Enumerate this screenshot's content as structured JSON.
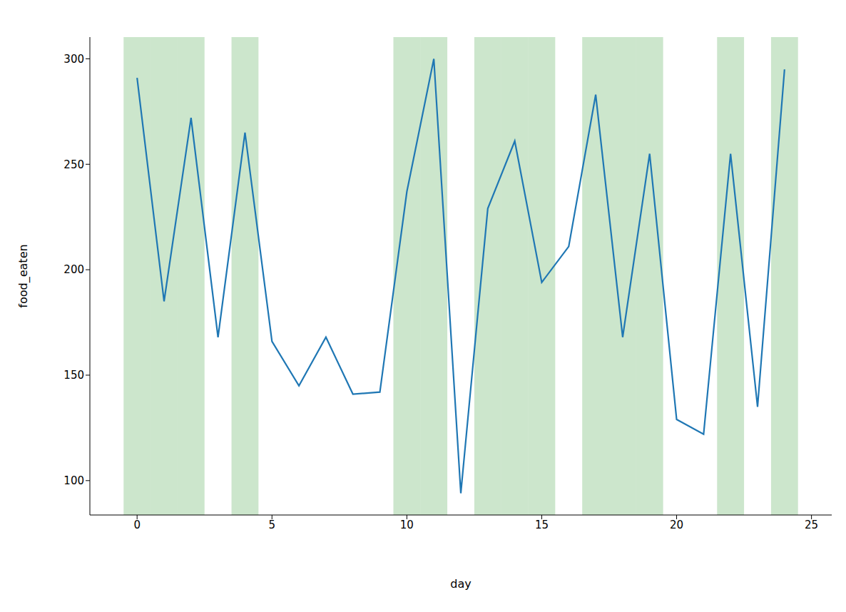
{
  "chart_data": {
    "type": "line",
    "x": [
      0,
      1,
      2,
      3,
      4,
      5,
      6,
      7,
      8,
      9,
      10,
      11,
      12,
      13,
      14,
      15,
      16,
      17,
      18,
      19,
      20,
      21,
      22,
      23,
      24
    ],
    "values": [
      291,
      185,
      272,
      168,
      265,
      166,
      145,
      168,
      141,
      142,
      237,
      300,
      94,
      229,
      261,
      194,
      211,
      283,
      168,
      255,
      129,
      122,
      255,
      135,
      295
    ],
    "color": "#1f77b4",
    "x_label": "day",
    "y_label": "food_eaten",
    "xlim": [
      -1.75,
      25.75
    ],
    "ylim": [
      83.7,
      310.3
    ],
    "xticks": [
      0,
      5,
      10,
      15,
      20,
      25
    ],
    "yticks": [
      100,
      150,
      200,
      250,
      300
    ],
    "highlighted_days": [
      0,
      1,
      2,
      4,
      10,
      11,
      13,
      14,
      15,
      17,
      18,
      19,
      22,
      24
    ],
    "grid": false
  }
}
